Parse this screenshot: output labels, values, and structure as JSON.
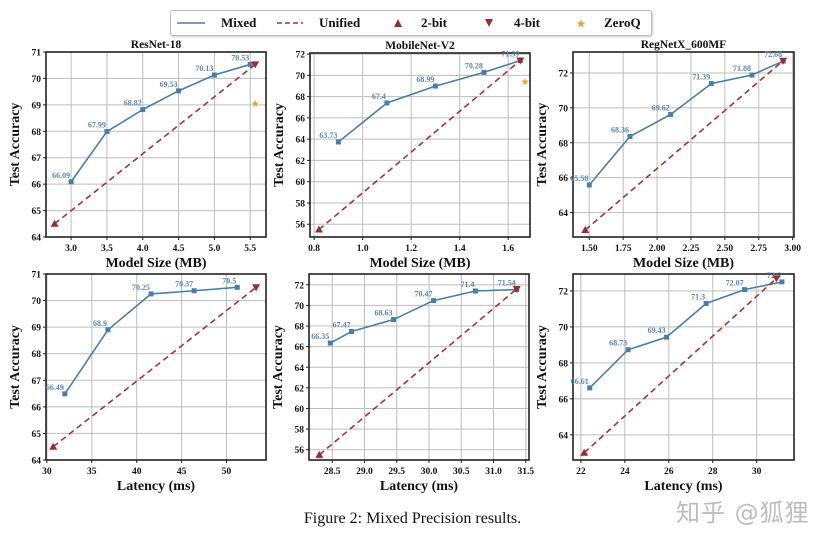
{
  "legend": {
    "items": [
      {
        "label": "Mixed",
        "symbol": "solid-line",
        "color": "#4a7ea8"
      },
      {
        "label": "Unified",
        "symbol": "dashed-line",
        "color": "#a83232"
      },
      {
        "label": "2-bit",
        "symbol": "triangle-up",
        "color": "#9b2d30"
      },
      {
        "label": "4-bit",
        "symbol": "triangle-down",
        "color": "#9b2d30"
      },
      {
        "label": "ZeroQ",
        "symbol": "star",
        "color": "#f0a030"
      }
    ]
  },
  "caption": "Figure 2: Mixed Precision results.",
  "watermark": "知乎 @狐狸",
  "chart_data": [
    {
      "type": "line",
      "title": "ResNet-18",
      "xlabel": "Model Size (MB)",
      "ylabel": "Test Accuracy",
      "xlim": [
        2.65,
        5.72
      ],
      "ylim": [
        64,
        71
      ],
      "grid": true,
      "xticks": [
        3.0,
        3.5,
        4.0,
        4.5,
        5.0,
        5.5
      ],
      "xtick_labels": [
        "3.0",
        "3.5",
        "4.0",
        "4.5",
        "5.0",
        "5.5"
      ],
      "yticks": [
        64,
        65,
        66,
        67,
        68,
        69,
        70,
        71
      ],
      "ytick_labels": [
        "64",
        "65",
        "66",
        "67",
        "68",
        "69",
        "70",
        "71"
      ],
      "series": [
        {
          "name": "Mixed",
          "x": [
            3.0,
            3.5,
            4.0,
            4.5,
            5.0,
            5.5
          ],
          "y": [
            66.09,
            67.99,
            68.82,
            69.53,
            70.13,
            70.53
          ],
          "labels": [
            "66.09",
            "67.99",
            "68.82",
            "69.53",
            "70.13",
            "70.53"
          ]
        },
        {
          "name": "Unified",
          "x": [
            2.77,
            5.57
          ],
          "y": [
            64.5,
            70.53
          ],
          "markers": [
            "2-bit",
            "4-bit"
          ]
        },
        {
          "name": "ZeroQ",
          "x": [
            5.57
          ],
          "y": [
            69.05
          ]
        }
      ]
    },
    {
      "type": "line",
      "title": "MobileNet-V2",
      "xlabel": "Model Size (MB)",
      "ylabel": "Test Accuracy",
      "xlim": [
        0.783,
        1.69
      ],
      "ylim": [
        54.8,
        72.1
      ],
      "grid": true,
      "xticks": [
        0.8,
        1.0,
        1.2,
        1.4,
        1.6
      ],
      "xtick_labels": [
        "0.8",
        "1.0",
        "1.2",
        "1.4",
        "1.6"
      ],
      "yticks": [
        56,
        58,
        60,
        62,
        64,
        66,
        68,
        70,
        72
      ],
      "ytick_labels": [
        "56",
        "58",
        "60",
        "62",
        "64",
        "66",
        "68",
        "70",
        "72"
      ],
      "series": [
        {
          "name": "Mixed",
          "x": [
            0.9,
            1.1,
            1.3,
            1.5,
            1.65
          ],
          "y": [
            63.73,
            67.4,
            68.99,
            70.28,
            71.39
          ],
          "labels": [
            "63.73",
            "67.4",
            "68.99",
            "70.28",
            "71.39"
          ]
        },
        {
          "name": "Unified",
          "x": [
            0.82,
            1.65
          ],
          "y": [
            55.5,
            71.4
          ],
          "markers": [
            "2-bit",
            "4-bit"
          ]
        },
        {
          "name": "ZeroQ",
          "x": [
            1.67
          ],
          "y": [
            69.4
          ]
        }
      ]
    },
    {
      "type": "line",
      "title": "RegNetX_600MF",
      "xlabel": "Model Size (MB)",
      "ylabel": "Test Accuracy",
      "xlim": [
        1.38,
        3.01
      ],
      "ylim": [
        62.6,
        73.2
      ],
      "grid": true,
      "xticks": [
        1.5,
        1.75,
        2.0,
        2.25,
        2.5,
        2.75,
        3.0
      ],
      "xtick_labels": [
        "1.50",
        "1.75",
        "2.00",
        "2.25",
        "2.50",
        "2.75",
        "3.00"
      ],
      "yticks": [
        64,
        66,
        68,
        70,
        72
      ],
      "ytick_labels": [
        "64",
        "66",
        "68",
        "70",
        "72"
      ],
      "series": [
        {
          "name": "Mixed",
          "x": [
            1.5,
            1.8,
            2.1,
            2.4,
            2.7,
            2.93
          ],
          "y": [
            65.58,
            68.36,
            69.62,
            71.39,
            71.88,
            72.68
          ],
          "labels": [
            "65.58",
            "68.36",
            "69.62",
            "71.39",
            "71.88",
            "72.68"
          ]
        },
        {
          "name": "Unified",
          "x": [
            1.47,
            2.93
          ],
          "y": [
            63.0,
            72.7
          ],
          "markers": [
            "2-bit",
            "4-bit"
          ]
        }
      ]
    },
    {
      "type": "line",
      "title": "",
      "xlabel": "Latency (ms)",
      "ylabel": "Test Accuracy",
      "xlim": [
        29.9,
        54.4
      ],
      "ylim": [
        64,
        71
      ],
      "grid": true,
      "xticks": [
        30,
        35,
        40,
        45,
        50
      ],
      "xtick_labels": [
        "30",
        "35",
        "40",
        "45",
        "50"
      ],
      "yticks": [
        64,
        65,
        66,
        67,
        68,
        69,
        70,
        71
      ],
      "ytick_labels": [
        "64",
        "65",
        "66",
        "67",
        "68",
        "69",
        "70",
        "71"
      ],
      "series": [
        {
          "name": "Mixed",
          "x": [
            32.0,
            36.8,
            41.6,
            46.4,
            51.2
          ],
          "y": [
            66.49,
            68.9,
            70.25,
            70.37,
            70.5
          ],
          "labels": [
            "66.49",
            "68.9",
            "70.25",
            "70.37",
            "70.5"
          ]
        },
        {
          "name": "Unified",
          "x": [
            30.7,
            53.3
          ],
          "y": [
            64.5,
            70.5
          ],
          "markers": [
            "2-bit",
            "4-bit"
          ]
        }
      ]
    },
    {
      "type": "line",
      "title": "",
      "xlabel": "Latency (ms)",
      "ylabel": "Test Accuracy",
      "xlim": [
        28.14,
        31.55
      ],
      "ylim": [
        55,
        73.05
      ],
      "grid": true,
      "xticks": [
        28.5,
        29.0,
        29.5,
        30.0,
        30.5,
        31.0,
        31.5
      ],
      "xtick_labels": [
        "28.5",
        "29.0",
        "29.5",
        "30.0",
        "30.5",
        "31.0",
        "31.5"
      ],
      "yticks": [
        56,
        58,
        60,
        62,
        64,
        66,
        68,
        70,
        72
      ],
      "ytick_labels": [
        "56",
        "58",
        "60",
        "62",
        "64",
        "66",
        "68",
        "70",
        "72"
      ],
      "series": [
        {
          "name": "Mixed",
          "x": [
            28.47,
            28.8,
            29.45,
            30.07,
            30.72,
            31.36
          ],
          "y": [
            66.35,
            67.47,
            68.63,
            70.47,
            71.4,
            71.54
          ],
          "labels": [
            "66.35",
            "67.47",
            "68.63",
            "70.47",
            "71.4",
            "71.54"
          ]
        },
        {
          "name": "Unified",
          "x": [
            28.3,
            31.36
          ],
          "y": [
            55.5,
            71.6
          ],
          "markers": [
            "2-bit",
            "4-bit"
          ]
        }
      ]
    },
    {
      "type": "line",
      "title": "",
      "xlabel": "Latency (ms)",
      "ylabel": "Test Accuracy",
      "xlim": [
        21.64,
        31.7
      ],
      "ylim": [
        62.6,
        72.94
      ],
      "grid": true,
      "xticks": [
        22,
        24,
        26,
        28,
        30
      ],
      "xtick_labels": [
        "22",
        "24",
        "26",
        "28",
        "30"
      ],
      "yticks": [
        64,
        66,
        68,
        70,
        72
      ],
      "ytick_labels": [
        "64",
        "66",
        "68",
        "70",
        "72"
      ],
      "series": [
        {
          "name": "Mixed",
          "x": [
            22.4,
            24.15,
            25.9,
            27.7,
            29.45,
            31.15
          ],
          "y": [
            66.61,
            68.73,
            69.43,
            71.3,
            72.07,
            72.5
          ],
          "labels": [
            "66.61",
            "68.73",
            "69.43",
            "71.3",
            "72.07",
            "72.5"
          ]
        },
        {
          "name": "Unified",
          "x": [
            22.15,
            30.9
          ],
          "y": [
            63.0,
            72.7
          ],
          "markers": [
            "2-bit",
            "4-bit"
          ]
        }
      ]
    }
  ]
}
